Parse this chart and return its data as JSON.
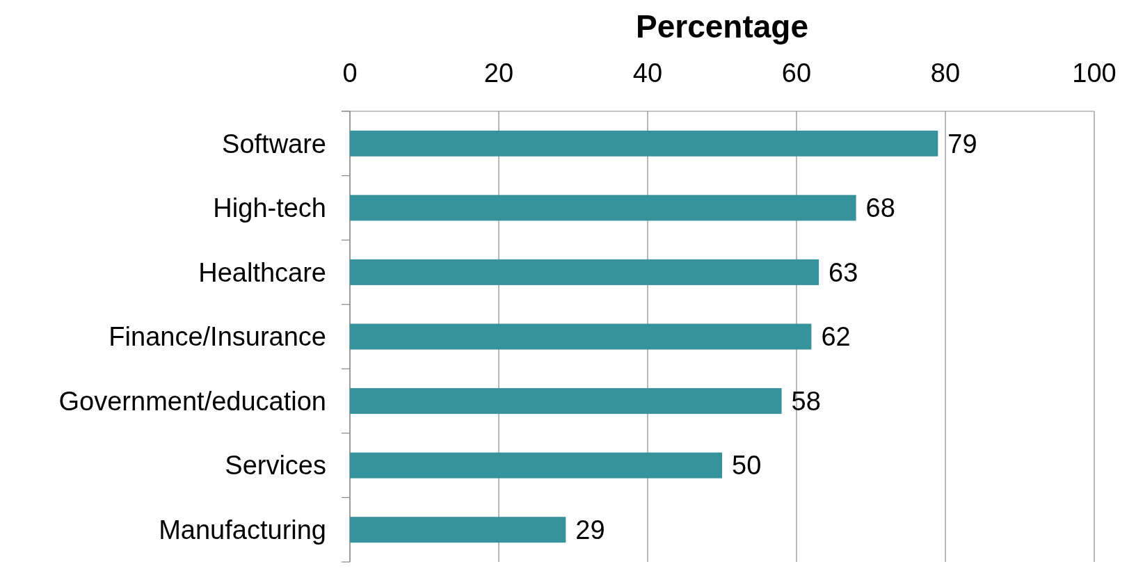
{
  "chart_data": {
    "type": "bar",
    "orientation": "horizontal",
    "xlabel": "Percentage",
    "categories": [
      "Software",
      "High-tech",
      "Healthcare",
      "Finance/Insurance",
      "Government/education",
      "Services",
      "Manufacturing"
    ],
    "values": [
      79,
      68,
      63,
      62,
      58,
      50,
      29
    ],
    "color": "#36939b",
    "xlim": [
      0,
      100
    ],
    "xticks": [
      0,
      20,
      40,
      60,
      80,
      100
    ],
    "grid": "x",
    "data_labels": true
  }
}
